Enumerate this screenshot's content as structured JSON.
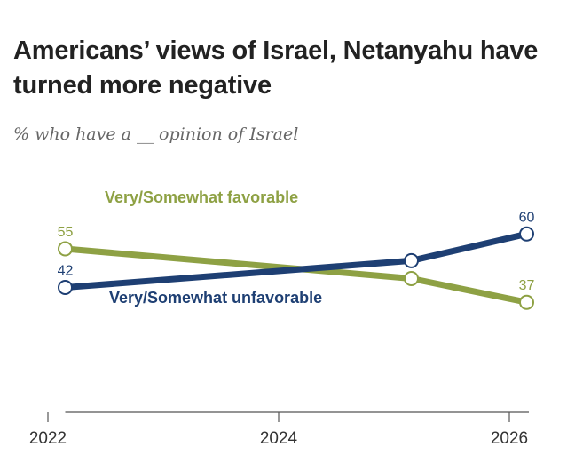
{
  "title": "Americans’ views of Israel, Netanyahu have turned more negative",
  "subtitle": "% who have a __ opinion of Israel",
  "colors": {
    "favorable": "#8ea144",
    "unfavorable": "#1e3f73",
    "axis": "#555555"
  },
  "chart_data": {
    "type": "line",
    "xlim": [
      2022,
      2026
    ],
    "ylim": [
      0,
      70
    ],
    "x_ticks": [
      2022,
      2024,
      2026
    ],
    "x_tick_labels": [
      "2022",
      "2024",
      "2026"
    ],
    "grid": false,
    "series": [
      {
        "name": "Very/Somewhat favorable",
        "color": "#8ea144",
        "x": [
          2022.15,
          2025.15,
          2026.15
        ],
        "values": [
          55,
          45,
          37
        ],
        "data_labels": [
          "55",
          "",
          "37"
        ]
      },
      {
        "name": "Very/Somewhat unfavorable",
        "color": "#1e3f73",
        "x": [
          2022.15,
          2025.15,
          2026.15
        ],
        "values": [
          42,
          51,
          60
        ],
        "data_labels": [
          "42",
          "",
          "60"
        ]
      }
    ]
  }
}
